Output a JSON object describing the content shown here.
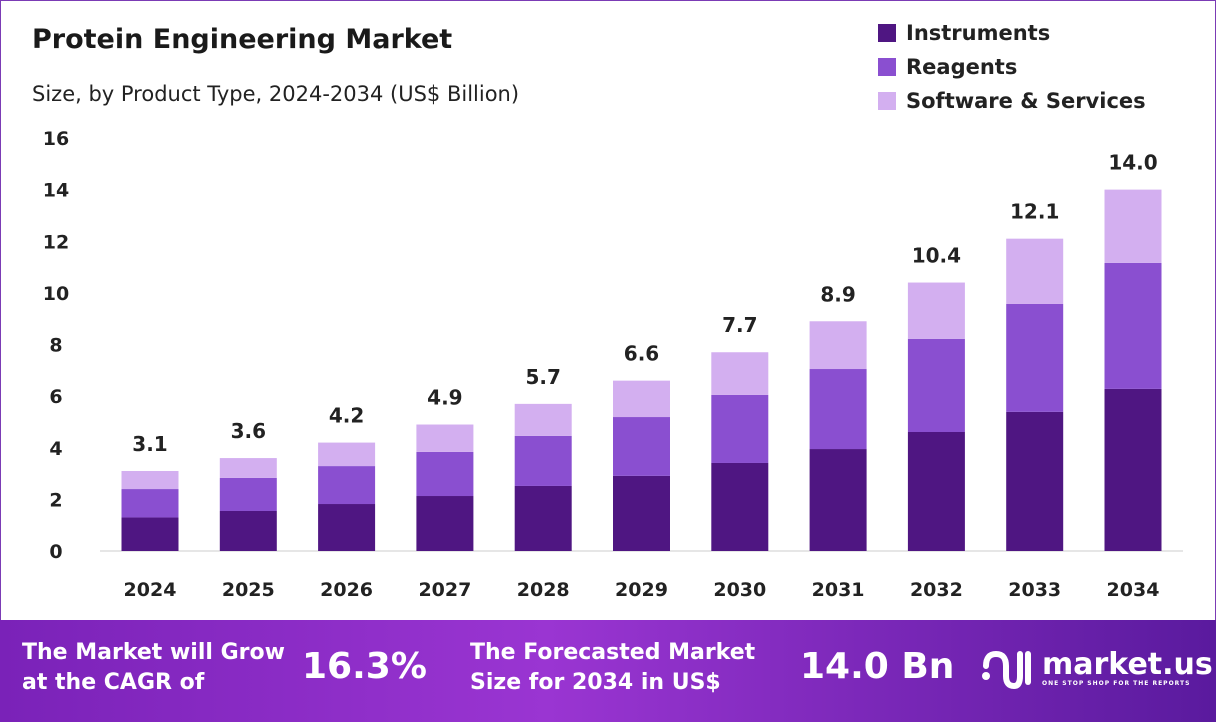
{
  "chart_data": {
    "type": "bar",
    "stacked": true,
    "title": "Protein Engineering Market",
    "subtitle": "Size, by Product Type, 2024-2034 (US$ Billion)",
    "categories": [
      "2024",
      "2025",
      "2026",
      "2027",
      "2028",
      "2029",
      "2030",
      "2031",
      "2032",
      "2033",
      "2034"
    ],
    "series": [
      {
        "name": "Instruments",
        "color": "#4f1682",
        "values": [
          1.3,
          1.55,
          1.82,
          2.13,
          2.52,
          2.91,
          3.41,
          3.95,
          4.61,
          5.39,
          6.28
        ]
      },
      {
        "name": "Reagents",
        "color": "#8a4fd0",
        "values": [
          1.1,
          1.28,
          1.47,
          1.71,
          1.94,
          2.28,
          2.64,
          3.1,
          3.61,
          4.18,
          4.88
        ]
      },
      {
        "name": "Software & Services",
        "color": "#d3aff0",
        "values": [
          0.7,
          0.77,
          0.91,
          1.06,
          1.24,
          1.41,
          1.65,
          1.85,
          2.18,
          2.53,
          2.84
        ]
      }
    ],
    "totals": [
      "3.1",
      "3.6",
      "4.2",
      "4.9",
      "5.7",
      "6.6",
      "7.7",
      "8.9",
      "10.4",
      "12.1",
      "14.0"
    ],
    "yticks": [
      0,
      2,
      4,
      6,
      8,
      10,
      12,
      14,
      16
    ],
    "ylim": [
      0,
      16
    ],
    "grid": false,
    "legend_position": "top-right"
  },
  "footer": {
    "cagr_label_1": "The Market will Grow",
    "cagr_label_2": "at the CAGR of",
    "cagr_value": "16.3%",
    "forecast_label_1": "The Forecasted Market",
    "forecast_label_2": "Size for 2034 in US$",
    "forecast_value": "14.0 Bn",
    "logo_text": "market.us",
    "logo_tagline": "ONE STOP SHOP FOR THE REPORTS"
  }
}
